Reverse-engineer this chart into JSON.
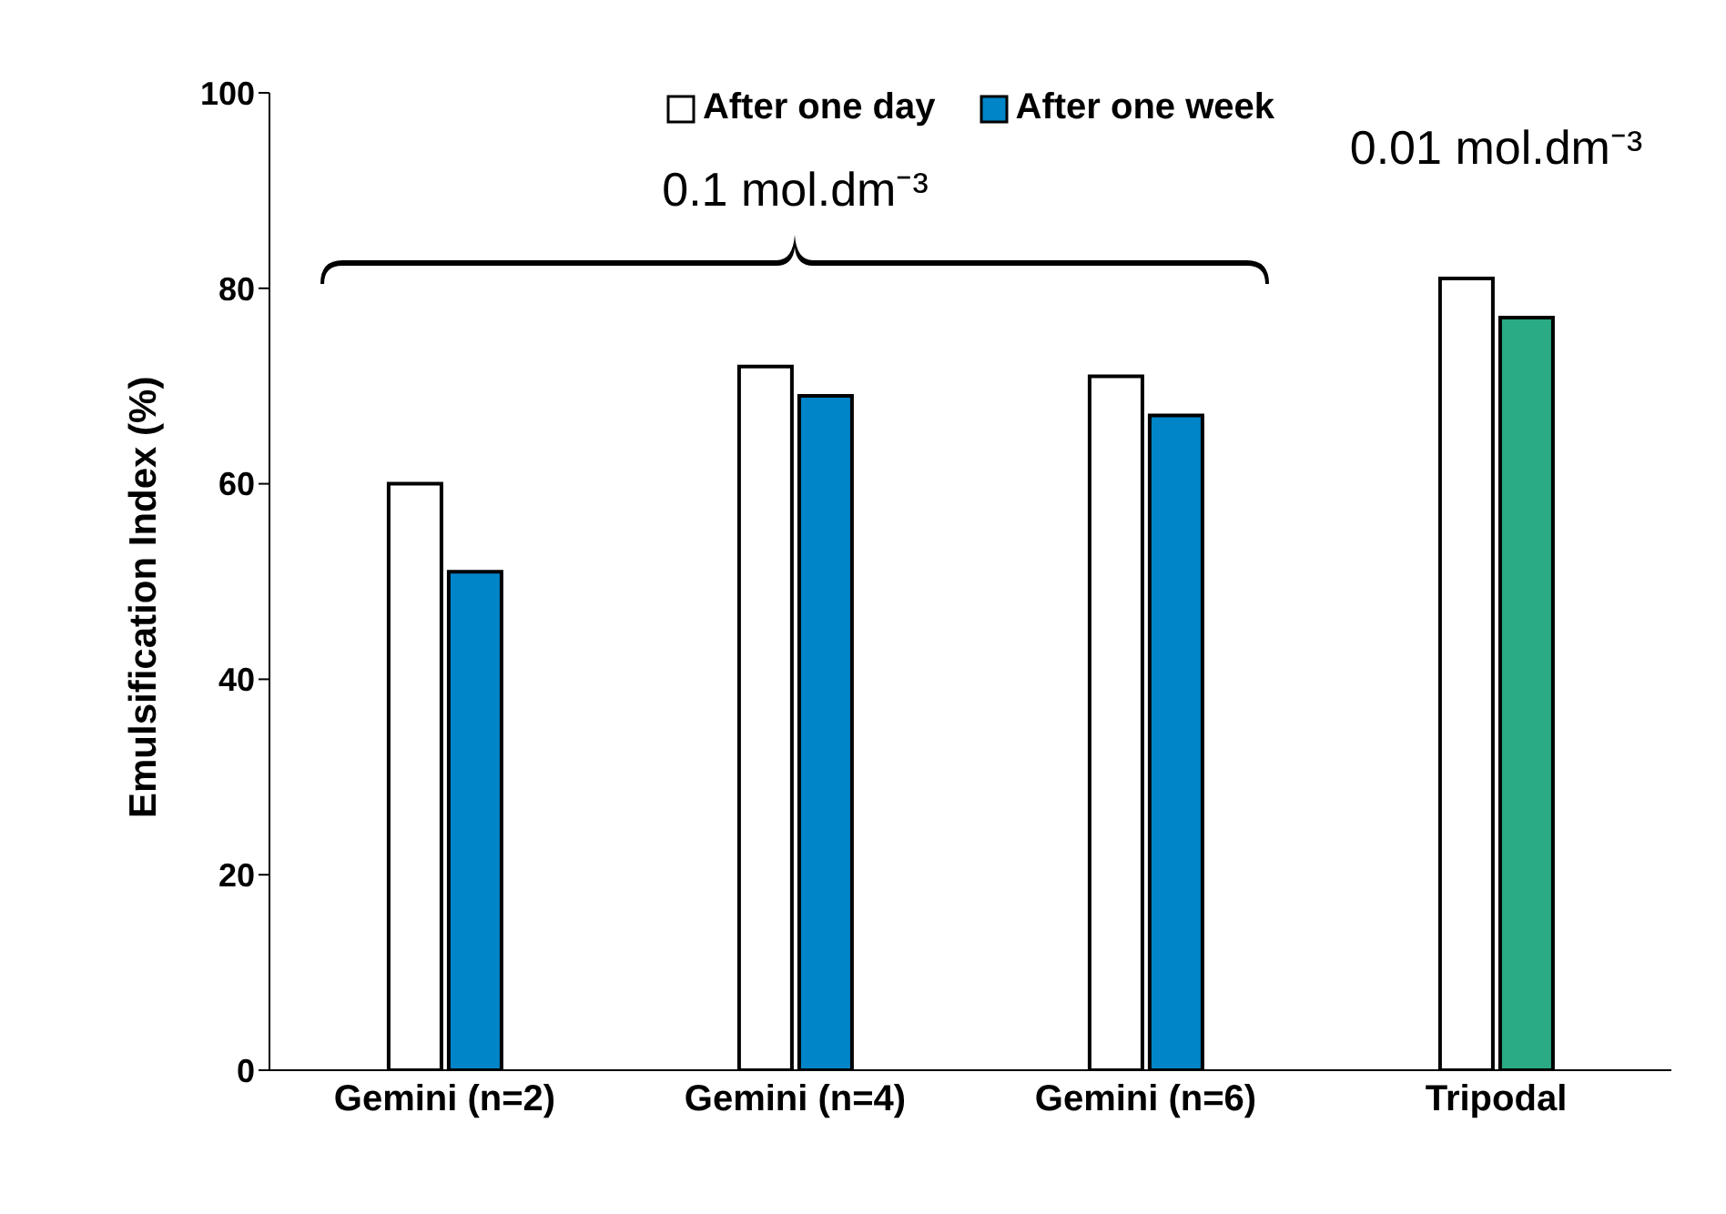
{
  "chart_data": {
    "type": "bar",
    "ylabel": "Emulsification Index (%)",
    "categories": [
      "Gemini (n=2)",
      "Gemini (n=4)",
      "Gemini (n=6)",
      "Tripodal"
    ],
    "series": [
      {
        "name": "After one day",
        "color": "#ffffff",
        "colors": [
          "#ffffff",
          "#ffffff",
          "#ffffff",
          "#ffffff"
        ],
        "values": [
          60,
          72,
          71,
          81
        ]
      },
      {
        "name": "After one week",
        "color": "#0085c8",
        "colors": [
          "#0085c8",
          "#0085c8",
          "#0085c8",
          "#2aaa85"
        ],
        "values": [
          51,
          69,
          67,
          77
        ]
      }
    ],
    "ylim": [
      0,
      100
    ],
    "yticks": [
      0,
      20,
      40,
      60,
      80,
      100
    ],
    "grid": false,
    "legend": "top",
    "annotations": [
      "0.1 mol.dm⁻³",
      "0.01 mol.dm⁻³"
    ]
  }
}
